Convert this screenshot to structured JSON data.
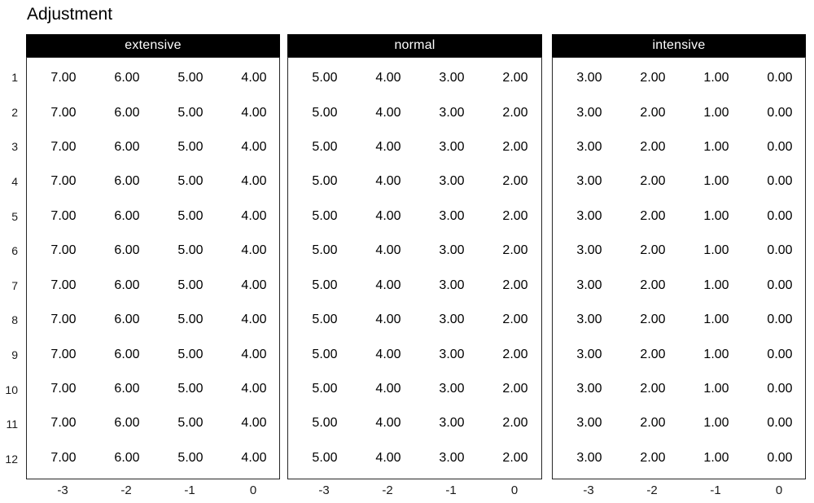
{
  "title": "Adjustment",
  "y_axis": {
    "labels": [
      "1",
      "2",
      "3",
      "4",
      "5",
      "6",
      "7",
      "8",
      "9",
      "10",
      "11",
      "12"
    ]
  },
  "x_axis": {
    "labels": [
      "-3",
      "-2",
      "-1",
      "0"
    ]
  },
  "panels": [
    {
      "label": "extensive",
      "row_values": [
        "7.00",
        "6.00",
        "5.00",
        "4.00"
      ]
    },
    {
      "label": "normal",
      "row_values": [
        "5.00",
        "4.00",
        "3.00",
        "2.00"
      ]
    },
    {
      "label": "intensive",
      "row_values": [
        "3.00",
        "2.00",
        "1.00",
        "0.00"
      ]
    }
  ],
  "colors": {
    "background": "#ffffff",
    "strip_background": "#000000",
    "strip_text": "#ffffff",
    "panel_border": "#262626",
    "cell_text": "#000000",
    "axis_text": "#1a1a1a"
  },
  "chart_data": {
    "type": "table",
    "title": "Adjustment",
    "facets": [
      "extensive",
      "normal",
      "intensive"
    ],
    "x": [
      -3,
      -2,
      -1,
      0
    ],
    "rows": [
      1,
      2,
      3,
      4,
      5,
      6,
      7,
      8,
      9,
      10,
      11,
      12
    ],
    "series": [
      {
        "name": "extensive",
        "values_per_row": [
          7.0,
          6.0,
          5.0,
          4.0
        ]
      },
      {
        "name": "normal",
        "values_per_row": [
          5.0,
          4.0,
          3.0,
          2.0
        ]
      },
      {
        "name": "intensive",
        "values_per_row": [
          3.0,
          2.0,
          1.0,
          0.0
        ]
      }
    ],
    "note_layout": {
      "legend": "none",
      "grid": "off",
      "strip_position": "top",
      "all_rows_identical_within_facet": true
    }
  }
}
